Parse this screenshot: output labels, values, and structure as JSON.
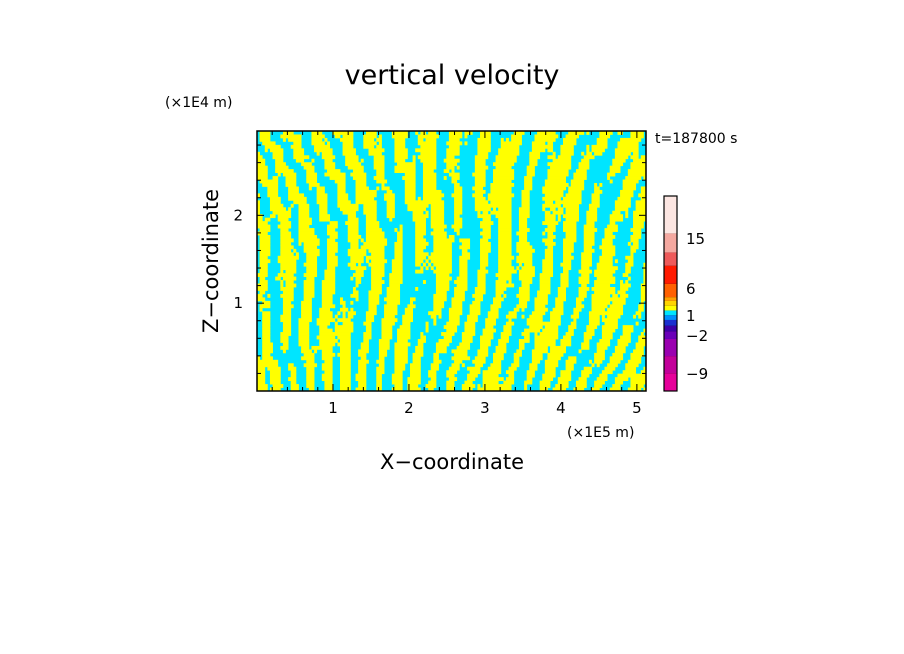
{
  "chart_data": {
    "type": "heatmap",
    "title": "vertical velocity",
    "xlabel": "X−coordinate",
    "ylabel": "Z−coordinate",
    "x_unit_label": "(×1E5 m)",
    "y_unit_label": "(×1E4 m)",
    "time_label": "t=187800 s",
    "xlim": [
      0,
      5.12
    ],
    "ylim": [
      0,
      2.96
    ],
    "x_ticks": [
      "1",
      "2",
      "3",
      "4",
      "5"
    ],
    "y_ticks": [
      "1",
      "2"
    ],
    "field_colors": {
      "positive": "#ffff00",
      "negative": "#00e5ff"
    },
    "colorbar": {
      "tick_labels": [
        "15",
        "6",
        "1",
        "−2",
        "−9"
      ],
      "levels_bottom_to_top": [
        {
          "color": "#e6009a"
        },
        {
          "color": "#c2009a"
        },
        {
          "color": "#9a00b0"
        },
        {
          "color": "#6a00b8"
        },
        {
          "color": "#3c00a8"
        },
        {
          "color": "#1a30d0"
        },
        {
          "color": "#0090ff"
        },
        {
          "color": "#00e5ff"
        },
        {
          "color": "#ffff00"
        },
        {
          "color": "#ffd400"
        },
        {
          "color": "#ff9f00"
        },
        {
          "color": "#ff6000"
        },
        {
          "color": "#ff1a00"
        },
        {
          "color": "#ee5a5a"
        },
        {
          "color": "#f4a8a0"
        },
        {
          "color": "#fce6e2"
        }
      ]
    }
  }
}
